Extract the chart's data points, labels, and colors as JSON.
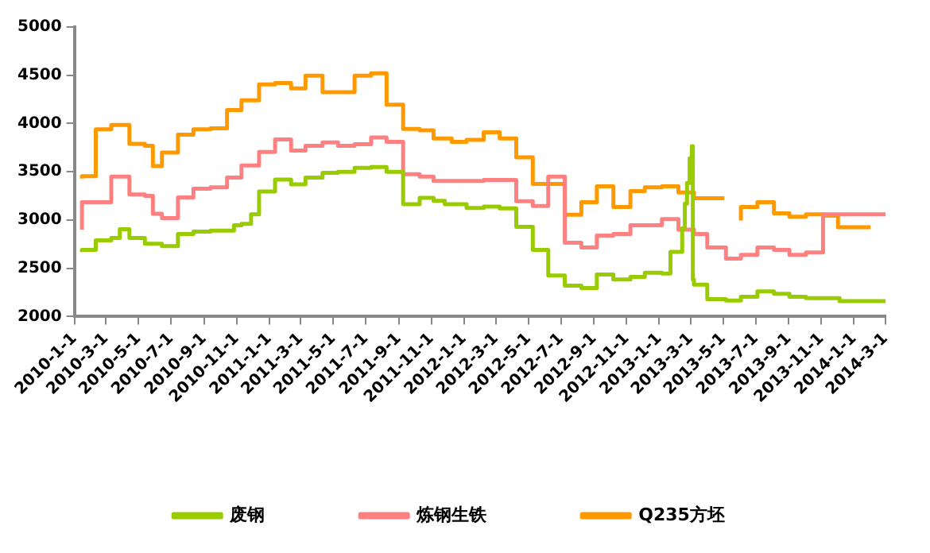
{
  "chart_data": {
    "type": "step",
    "ylim": [
      2000,
      5000
    ],
    "yticks": [
      2000,
      2500,
      3000,
      3500,
      4000,
      4500,
      5000
    ],
    "xlim": [
      "2010-01-01",
      "2014-03-01"
    ],
    "xticks": [
      {
        "value": "2010-01-01",
        "label": "2010-1-1"
      },
      {
        "value": "2010-03-01",
        "label": "2010-3-1"
      },
      {
        "value": "2010-05-01",
        "label": "2010-5-1"
      },
      {
        "value": "2010-07-01",
        "label": "2010-7-1"
      },
      {
        "value": "2010-09-01",
        "label": "2010-9-1"
      },
      {
        "value": "2010-11-01",
        "label": "2010-11-1"
      },
      {
        "value": "2011-01-01",
        "label": "2011-1-1"
      },
      {
        "value": "2011-03-01",
        "label": "2011-3-1"
      },
      {
        "value": "2011-05-01",
        "label": "2011-5-1"
      },
      {
        "value": "2011-07-01",
        "label": "2011-7-1"
      },
      {
        "value": "2011-09-01",
        "label": "2011-9-1"
      },
      {
        "value": "2011-11-01",
        "label": "2011-11-1"
      },
      {
        "value": "2012-01-01",
        "label": "2012-1-1"
      },
      {
        "value": "2012-03-01",
        "label": "2012-3-1"
      },
      {
        "value": "2012-05-01",
        "label": "2012-5-1"
      },
      {
        "value": "2012-07-01",
        "label": "2012-7-1"
      },
      {
        "value": "2012-09-01",
        "label": "2012-9-1"
      },
      {
        "value": "2012-11-01",
        "label": "2012-11-1"
      },
      {
        "value": "2013-01-01",
        "label": "2013-1-1"
      },
      {
        "value": "2013-03-01",
        "label": "2013-3-1"
      },
      {
        "value": "2013-05-01",
        "label": "2013-5-1"
      },
      {
        "value": "2013-07-01",
        "label": "2013-7-1"
      },
      {
        "value": "2013-09-01",
        "label": "2013-9-1"
      },
      {
        "value": "2013-11-01",
        "label": "2013-11-1"
      },
      {
        "value": "2014-01-01",
        "label": "2014-1-1"
      },
      {
        "value": "2014-03-01",
        "label": "2014-3-1"
      }
    ],
    "grid": false,
    "legend": "bottom",
    "series": [
      {
        "name": "废钢",
        "color": "#99cc00",
        "x": [
          "2010-01-15",
          "2010-02-10",
          "2010-03-11",
          "2010-03-27",
          "2010-04-14",
          "2010-05-13",
          "2010-06-14",
          "2010-07-14",
          "2010-08-12",
          "2010-09-13",
          "2010-10-27",
          "2010-11-10",
          "2010-11-28",
          "2010-12-13",
          "2011-01-12",
          "2011-02-11",
          "2011-03-10",
          "2011-04-11",
          "2011-05-10",
          "2011-06-10",
          "2011-07-11",
          "2011-08-09",
          "2011-09-09",
          "2011-10-10",
          "2011-11-05",
          "2011-11-26",
          "2012-01-06",
          "2012-02-07",
          "2012-03-08",
          "2012-04-08",
          "2012-05-09",
          "2012-06-07",
          "2012-07-08",
          "2012-08-08",
          "2012-09-06",
          "2012-10-07",
          "2012-11-08",
          "2012-12-05",
          "2013-01-06",
          "2013-01-22",
          "2013-02-13",
          "2013-02-18",
          "2013-02-22",
          "2013-02-27",
          "2013-03-03",
          "2013-03-05",
          "2013-03-07",
          "2013-04-01",
          "2013-05-06",
          "2013-06-03",
          "2013-07-04",
          "2013-08-04",
          "2013-09-02",
          "2013-10-03",
          "2013-12-05",
          "2014-01-02",
          "2014-03-01"
        ],
        "values": [
          2670,
          2690,
          2790,
          2815,
          2905,
          2815,
          2755,
          2730,
          2855,
          2880,
          2890,
          2945,
          2960,
          3060,
          3295,
          3420,
          3370,
          3440,
          3490,
          3500,
          3540,
          3550,
          3500,
          3165,
          3230,
          3200,
          3165,
          3125,
          3140,
          3120,
          2930,
          2690,
          2425,
          2320,
          2295,
          2435,
          2385,
          2410,
          2455,
          2445,
          2670,
          2915,
          3170,
          3385,
          3640,
          3765,
          2385,
          2330,
          2180,
          2165,
          2205,
          2260,
          2235,
          2205,
          2190,
          2160,
          2160
        ]
      },
      {
        "name": "炼钢生铁",
        "color": "#ff8080",
        "x": [
          "2010-01-15",
          "2010-03-11",
          "2010-04-14",
          "2010-05-13",
          "2010-05-28",
          "2010-06-14",
          "2010-07-14",
          "2010-08-12",
          "2010-09-13",
          "2010-10-14",
          "2010-11-10",
          "2010-12-13",
          "2011-01-12",
          "2011-02-11",
          "2011-03-10",
          "2011-04-11",
          "2011-05-10",
          "2011-06-10",
          "2011-07-11",
          "2011-08-09",
          "2011-09-09",
          "2011-10-10",
          "2011-11-05",
          "2012-02-07",
          "2012-04-08",
          "2012-05-09",
          "2012-06-07",
          "2012-07-08",
          "2012-08-08",
          "2012-09-06",
          "2012-10-07",
          "2012-11-08",
          "2013-01-06",
          "2013-02-06",
          "2013-03-07",
          "2013-04-01",
          "2013-05-06",
          "2013-06-03",
          "2013-07-04",
          "2013-08-04",
          "2013-09-02",
          "2013-10-03",
          "2013-11-04",
          "2013-12-02",
          "2014-03-01"
        ],
        "values": [
          2900,
          3185,
          3450,
          3265,
          3250,
          3065,
          3020,
          3235,
          3325,
          3340,
          3440,
          3565,
          3705,
          3835,
          3720,
          3770,
          3805,
          3770,
          3785,
          3855,
          3810,
          3475,
          3450,
          3405,
          3415,
          3195,
          3145,
          3450,
          2765,
          2715,
          2840,
          2855,
          2945,
          3010,
          2900,
          2855,
          2715,
          2600,
          2640,
          2715,
          2690,
          2640,
          2665,
          3060,
          3060
        ]
      },
      {
        "name": "Q235方坯",
        "color": "#ff9900",
        "x": [
          "2010-01-15",
          "2010-02-10",
          "2010-03-11",
          "2010-04-14",
          "2010-05-13",
          "2010-05-28",
          "2010-06-14",
          "2010-07-14",
          "2010-08-12",
          "2010-09-13",
          "2010-10-14",
          "2010-11-10",
          "2010-12-13",
          "2011-01-12",
          "2011-02-11",
          "2011-03-10",
          "2011-04-11",
          "2011-06-10",
          "2011-07-11",
          "2011-08-09",
          "2011-09-09",
          "2011-10-10",
          "2011-11-05",
          "2011-12-09",
          "2012-01-06",
          "2012-02-07",
          "2012-03-08",
          "2012-04-08",
          "2012-05-09",
          "2012-07-08",
          "2012-08-08",
          "2012-09-06",
          "2012-10-07",
          "2012-11-08",
          "2012-12-05",
          "2013-01-06",
          "2013-02-06",
          "2013-03-07",
          "2013-04-01",
          "2013-05-03",
          "2013-05-06",
          "2013-06-03",
          "2013-07-04",
          "2013-08-04",
          "2013-09-02",
          "2013-10-03",
          "2013-11-04",
          "2013-12-02",
          "2014-01-02",
          "2014-02-01"
        ],
        "values": [
          3430,
          3455,
          3940,
          3985,
          3790,
          3770,
          3560,
          3700,
          3885,
          3940,
          3950,
          4140,
          4240,
          4405,
          4420,
          4365,
          4495,
          4325,
          4495,
          4520,
          4195,
          3945,
          3930,
          3845,
          3810,
          3830,
          3910,
          3845,
          3650,
          3375,
          3055,
          3185,
          3350,
          3135,
          3300,
          3340,
          3350,
          3285,
          3225,
          3225,
          null,
          2995,
          3135,
          3185,
          3070,
          3035,
          3060,
          3045,
          2925,
          2925
        ]
      }
    ]
  }
}
